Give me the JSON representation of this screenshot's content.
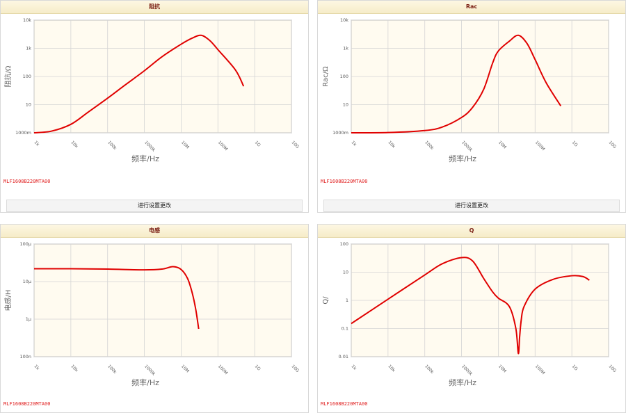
{
  "panels": [
    {
      "title": "阻抗",
      "model": "MLF1608B220MTA00",
      "button": "进行设置更改"
    },
    {
      "title": "Rac",
      "model": "MLF1608B220MTA00",
      "button": "进行设置更改"
    },
    {
      "title": "电感",
      "model": "MLF1608B220MTA00"
    },
    {
      "title": "Q",
      "model": "MLF1608B220MTA00"
    }
  ],
  "colors": {
    "curve": "#e00000",
    "plot_bg": "#fffbf0",
    "grid": "#d4d4d4",
    "axis": "#888888",
    "header_text": "#7a1e12",
    "model_text": "#e02020"
  },
  "chart_data": [
    {
      "type": "line",
      "title": "阻抗",
      "xlabel": "频率/Hz",
      "ylabel": "阻抗/Ω",
      "xscale": "log",
      "yscale": "log",
      "xlim": [
        1000,
        10000000000
      ],
      "ylim": [
        1,
        10000
      ],
      "x_ticks": [
        1000,
        10000,
        100000,
        1000000,
        10000000,
        100000000,
        1000000000,
        10000000000
      ],
      "x_tick_labels": [
        "1k",
        "10k",
        "100k",
        "1000k",
        "10M",
        "100M",
        "1G",
        "10G"
      ],
      "y_ticks": [
        1,
        10,
        100,
        1000,
        10000
      ],
      "y_tick_labels": [
        "1000m",
        "10",
        "100",
        "1k",
        "10k"
      ],
      "grid": true,
      "series": [
        {
          "x": [
            1000,
            3000,
            10000,
            30000,
            100000,
            300000,
            1000000,
            3000000,
            10000000,
            20000000,
            35000000,
            60000000,
            100000000,
            300000000,
            500000000
          ],
          "y": [
            1.0,
            1.15,
            2.0,
            5.5,
            17,
            50,
            160,
            500,
            1400,
            2300,
            2900,
            1900,
            900,
            170,
            45
          ]
        }
      ]
    },
    {
      "type": "line",
      "title": "Rac",
      "xlabel": "频率/Hz",
      "ylabel": "Rac/Ω",
      "xscale": "log",
      "yscale": "log",
      "xlim": [
        1000,
        10000000000
      ],
      "ylim": [
        1,
        10000
      ],
      "x_ticks": [
        1000,
        10000,
        100000,
        1000000,
        10000000,
        100000000,
        1000000000,
        10000000000
      ],
      "x_tick_labels": [
        "1k",
        "10k",
        "100k",
        "1000k",
        "10M",
        "100M",
        "1G",
        "10G"
      ],
      "y_ticks": [
        1,
        10,
        100,
        1000,
        10000
      ],
      "y_tick_labels": [
        "1000m",
        "10",
        "100",
        "1k",
        "10k"
      ],
      "grid": true,
      "series": [
        {
          "x": [
            1000,
            10000,
            100000,
            300000,
            1000000,
            2000000,
            4000000,
            7000000,
            10000000,
            20000000,
            35000000,
            60000000,
            100000000,
            200000000,
            500000000
          ],
          "y": [
            1.0,
            1.02,
            1.2,
            1.6,
            3.5,
            8,
            35,
            300,
            800,
            1800,
            2900,
            1500,
            400,
            60,
            9
          ]
        }
      ]
    },
    {
      "type": "line",
      "title": "电感",
      "xlabel": "频率/Hz",
      "ylabel": "电感/H",
      "xscale": "log",
      "yscale": "log",
      "xlim": [
        1000,
        10000000000
      ],
      "ylim": [
        1e-07,
        0.0001
      ],
      "x_ticks": [
        1000,
        10000,
        100000,
        1000000,
        10000000,
        100000000,
        1000000000,
        10000000000
      ],
      "x_tick_labels": [
        "1k",
        "10k",
        "100k",
        "1000k",
        "10M",
        "100M",
        "1G",
        "10G"
      ],
      "y_ticks": [
        1e-07,
        1e-06,
        1e-05,
        0.0001
      ],
      "y_tick_labels": [
        "100n",
        "1µ",
        "10µ",
        "100µ"
      ],
      "grid": true,
      "series": [
        {
          "x": [
            1000,
            10000,
            100000,
            1000000,
            3000000,
            6000000,
            10000000,
            15000000,
            20000000,
            25000000,
            30000000
          ],
          "y": [
            2.2e-05,
            2.2e-05,
            2.15e-05,
            2.05e-05,
            2.15e-05,
            2.5e-05,
            2.1e-05,
            1.2e-05,
            5e-06,
            1.8e-06,
            5.5e-07
          ]
        }
      ]
    },
    {
      "type": "line",
      "title": "Q",
      "xlabel": "频率/Hz",
      "ylabel": "Q/",
      "xscale": "log",
      "yscale": "log",
      "xlim": [
        1000,
        10000000000
      ],
      "ylim": [
        0.01,
        100
      ],
      "x_ticks": [
        1000,
        10000,
        100000,
        1000000,
        10000000,
        100000000,
        1000000000,
        10000000000
      ],
      "x_tick_labels": [
        "1k",
        "10k",
        "100k",
        "1000k",
        "10M",
        "100M",
        "1G",
        "10G"
      ],
      "y_ticks": [
        0.01,
        0.1,
        1,
        10,
        100
      ],
      "y_tick_labels": [
        "0.01",
        "0.1",
        "1",
        "10",
        "100"
      ],
      "grid": true,
      "series": [
        {
          "x": [
            1000,
            10000,
            100000,
            300000,
            1000000,
            2000000,
            4000000,
            7000000,
            10000000,
            20000000,
            30000000,
            35000000,
            38000000,
            42000000,
            50000000,
            100000000,
            300000000,
            1000000000,
            2000000000,
            3000000000
          ],
          "y": [
            0.15,
            1.1,
            8,
            20,
            33,
            25,
            6,
            2,
            1.2,
            0.6,
            0.1,
            0.013,
            0.05,
            0.2,
            0.6,
            2.5,
            5.5,
            7.5,
            7,
            5.2
          ]
        }
      ]
    }
  ]
}
